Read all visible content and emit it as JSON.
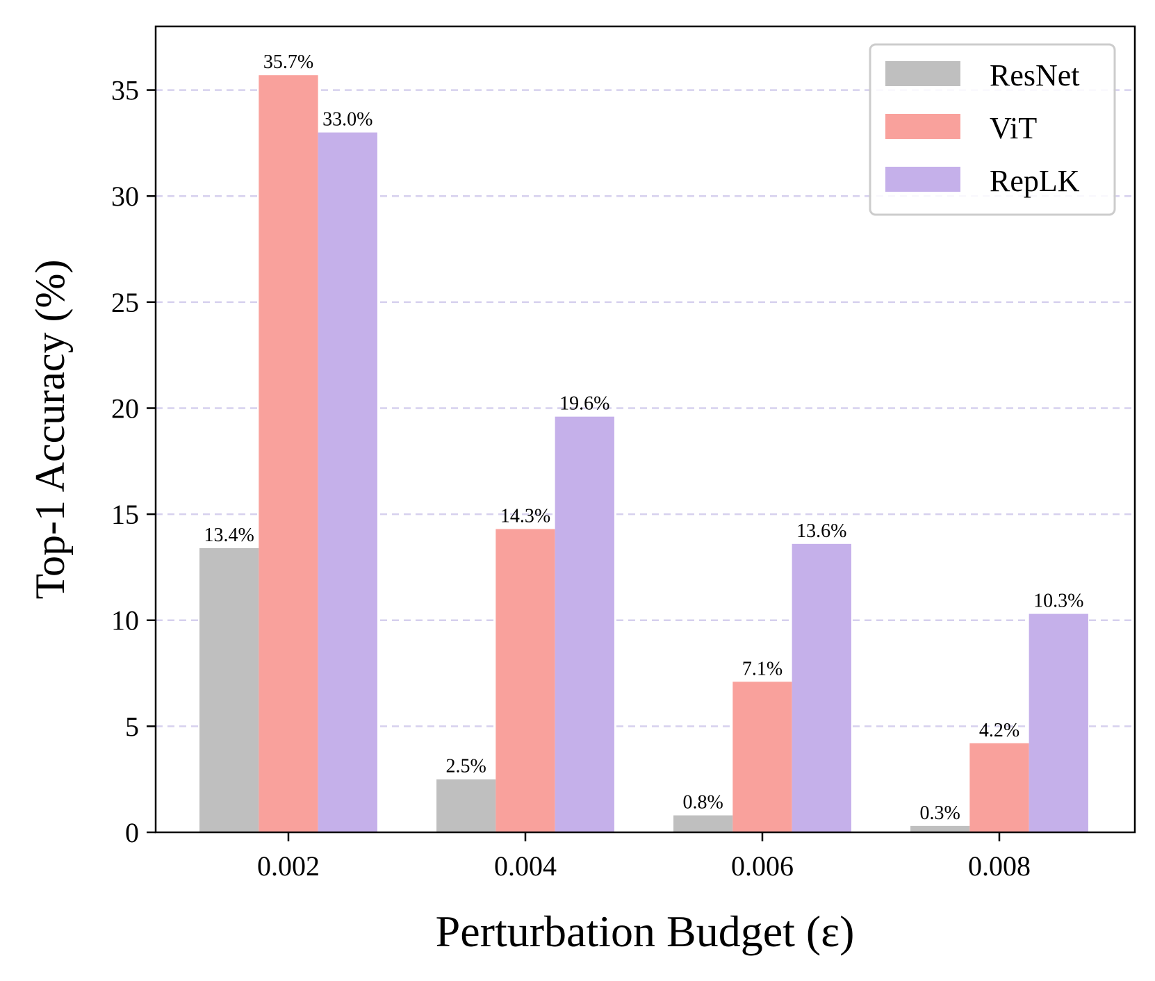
{
  "chart_data": {
    "type": "bar",
    "title": "",
    "xlabel": "Perturbation Budget (ε)",
    "ylabel": "Top-1 Accuracy (%)",
    "categories": [
      "0.002",
      "0.004",
      "0.006",
      "0.008"
    ],
    "ylim": [
      0,
      38
    ],
    "yticks": [
      0,
      5,
      10,
      15,
      20,
      25,
      30,
      35
    ],
    "grid": "horizontal dashed",
    "legend_position": "top-right",
    "series": [
      {
        "name": "ResNet",
        "color": "#bfbfbf",
        "values": [
          13.4,
          2.5,
          0.8,
          0.3
        ],
        "labels": [
          "13.4%",
          "2.5%",
          "0.8%",
          "0.3%"
        ]
      },
      {
        "name": "ViT",
        "color": "#f9a19c",
        "values": [
          35.7,
          14.3,
          7.1,
          4.2
        ],
        "labels": [
          "35.7%",
          "14.3%",
          "7.1%",
          "4.2%"
        ]
      },
      {
        "name": "RepLK",
        "color": "#c5b0ea",
        "values": [
          33.0,
          19.6,
          13.6,
          10.3
        ],
        "labels": [
          "33.0%",
          "19.6%",
          "13.6%",
          "10.3%"
        ]
      }
    ],
    "grid_color": "#d6d0ee"
  }
}
